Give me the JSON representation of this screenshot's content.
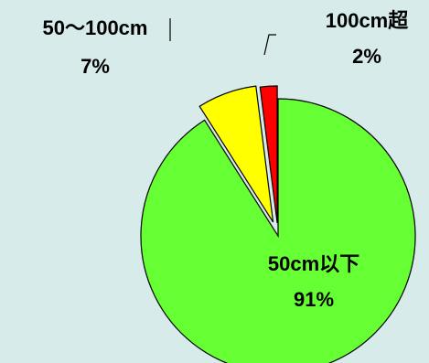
{
  "chart_data": {
    "type": "pie",
    "slices": [
      {
        "label": "50cm以下",
        "percent_label": "91%",
        "value": 91,
        "color": "#66ff33"
      },
      {
        "label": "50〜100cm",
        "percent_label": "7%",
        "value": 7,
        "color": "#ffff00"
      },
      {
        "label": "100cm超",
        "percent_label": "2%",
        "value": 2,
        "color": "#ff0000"
      }
    ],
    "start_angle_deg": 0,
    "direction": "clockwise",
    "exploded": true,
    "legend": "none",
    "background": "#d7ebeb"
  }
}
